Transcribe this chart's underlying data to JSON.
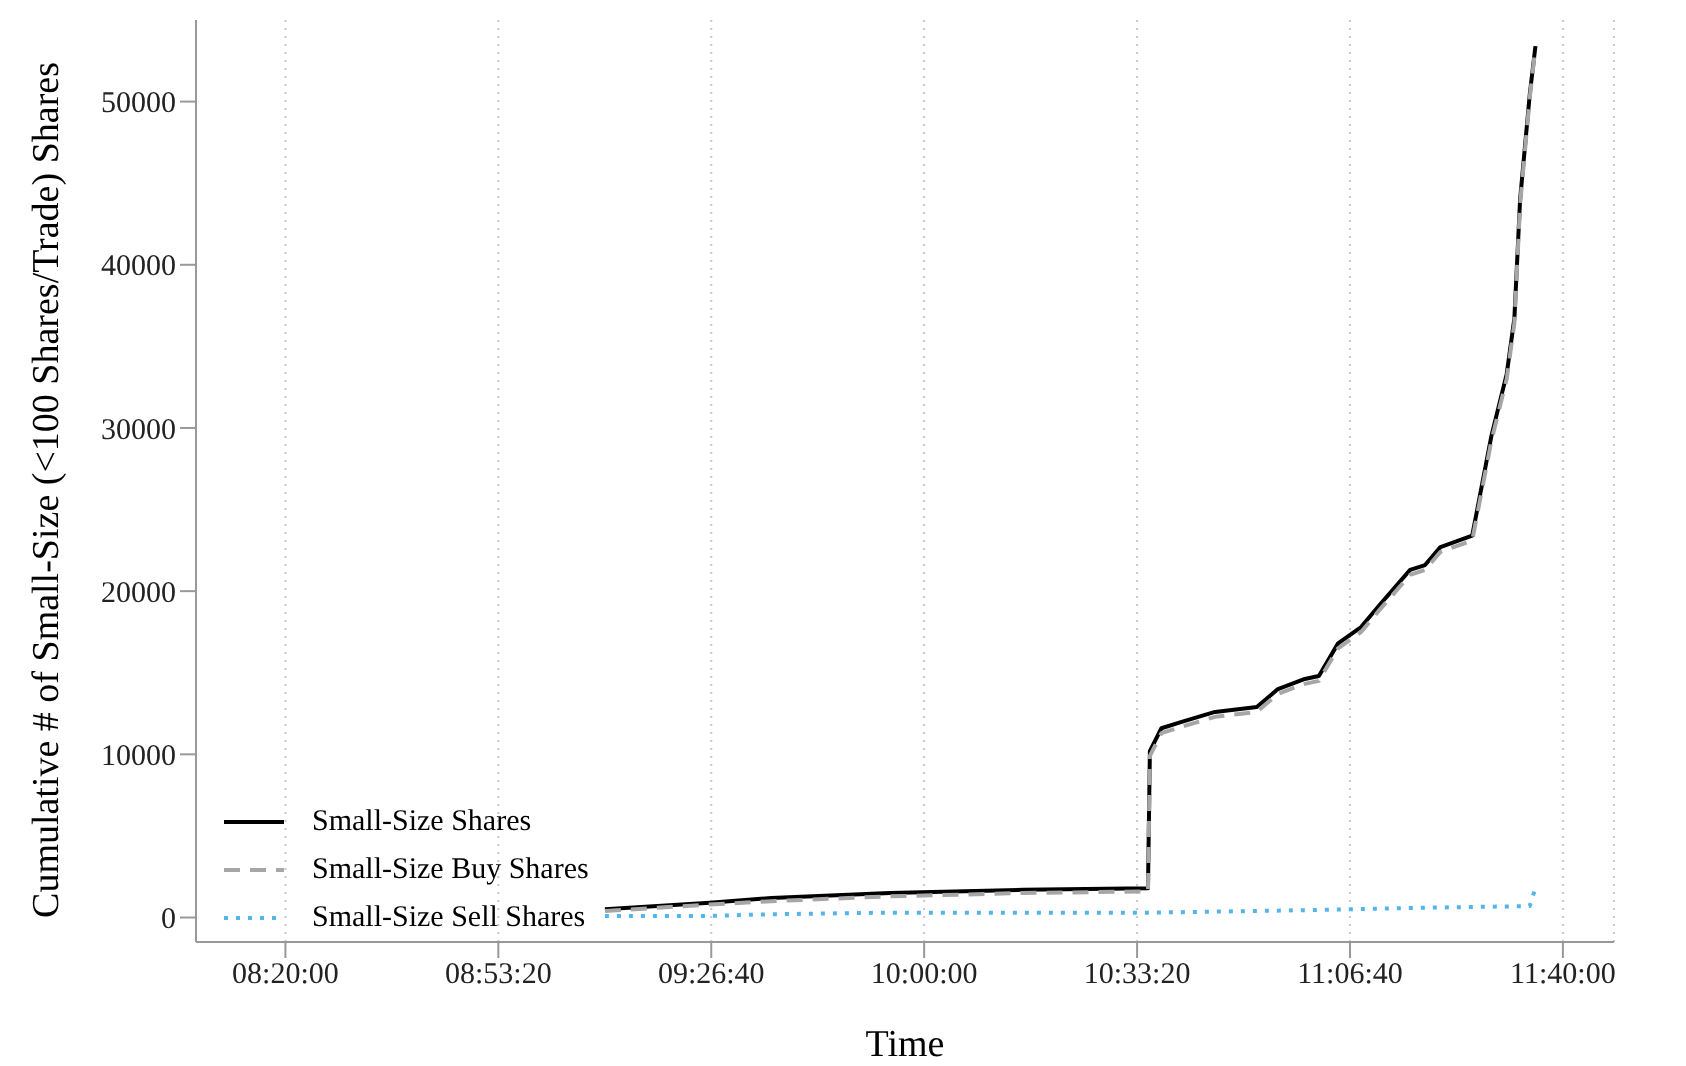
{
  "chart_data": {
    "type": "line",
    "xlabel": "Time",
    "ylabel": "Cumulative # of Small-Size (<100 Shares/Trade) Shares",
    "xlim": [
      8.1,
      11.8
    ],
    "xticks": [
      {
        "value": 8.333333,
        "label": "08:20:00"
      },
      {
        "value": 8.888889,
        "label": "08:53:20"
      },
      {
        "value": 9.444444,
        "label": "09:26:40"
      },
      {
        "value": 10,
        "label": "10:00:00"
      },
      {
        "value": 10.555556,
        "label": "10:33:20"
      },
      {
        "value": 11.111111,
        "label": "11:06:40"
      },
      {
        "value": 11.666667,
        "label": "11:40:00"
      }
    ],
    "ylim": [
      -1500,
      55000
    ],
    "yticks": [
      0,
      10000,
      20000,
      30000,
      40000,
      50000
    ],
    "grid": "x",
    "legend": "bottom left",
    "marker": "none",
    "series": [
      {
        "name": "Small-Size Shares",
        "color": "#000000",
        "line_style": "solid",
        "x": [
          9.167,
          9.441,
          9.601,
          9.91,
          10.259,
          10.584,
          10.589,
          10.619,
          10.674,
          10.759,
          10.868,
          10.923,
          10.99,
          11.03,
          11.08,
          11.14,
          11.19,
          11.268,
          11.307,
          11.347,
          11.43,
          11.48,
          11.52,
          11.54,
          11.555,
          11.58,
          11.595
        ],
        "values": [
          500,
          900,
          1200,
          1500,
          1700,
          1800,
          10200,
          11600,
          12000,
          12600,
          12900,
          14000,
          14600,
          14800,
          16800,
          17800,
          19200,
          21300,
          21600,
          22700,
          23400,
          29500,
          33300,
          36700,
          44000,
          50400,
          53400
        ]
      },
      {
        "name": "Small-Size Buy Shares",
        "color": "#a6a6a6",
        "line_style": "dashed",
        "x": [
          9.167,
          9.441,
          9.601,
          9.91,
          10.259,
          10.584,
          10.589,
          10.619,
          10.674,
          10.759,
          10.868,
          10.923,
          10.99,
          11.03,
          11.08,
          11.14,
          11.19,
          11.268,
          11.307,
          11.347,
          11.43,
          11.48,
          11.52,
          11.54,
          11.555,
          11.58,
          11.595
        ],
        "values": [
          400,
          800,
          1000,
          1300,
          1500,
          1600,
          9900,
          11300,
          11700,
          12300,
          12600,
          13700,
          14300,
          14500,
          16500,
          17500,
          18900,
          21000,
          21300,
          22400,
          23100,
          29200,
          33000,
          36400,
          43700,
          50200,
          53300
        ]
      },
      {
        "name": "Small-Size Sell Shares",
        "color": "#56b4e9",
        "line_style": "dotted",
        "x": [
          9.167,
          9.441,
          9.601,
          9.91,
          10.259,
          10.584,
          10.869,
          11.107,
          11.307,
          11.58,
          11.595
        ],
        "values": [
          100,
          100,
          200,
          300,
          300,
          300,
          400,
          500,
          600,
          700,
          1800
        ]
      }
    ]
  }
}
